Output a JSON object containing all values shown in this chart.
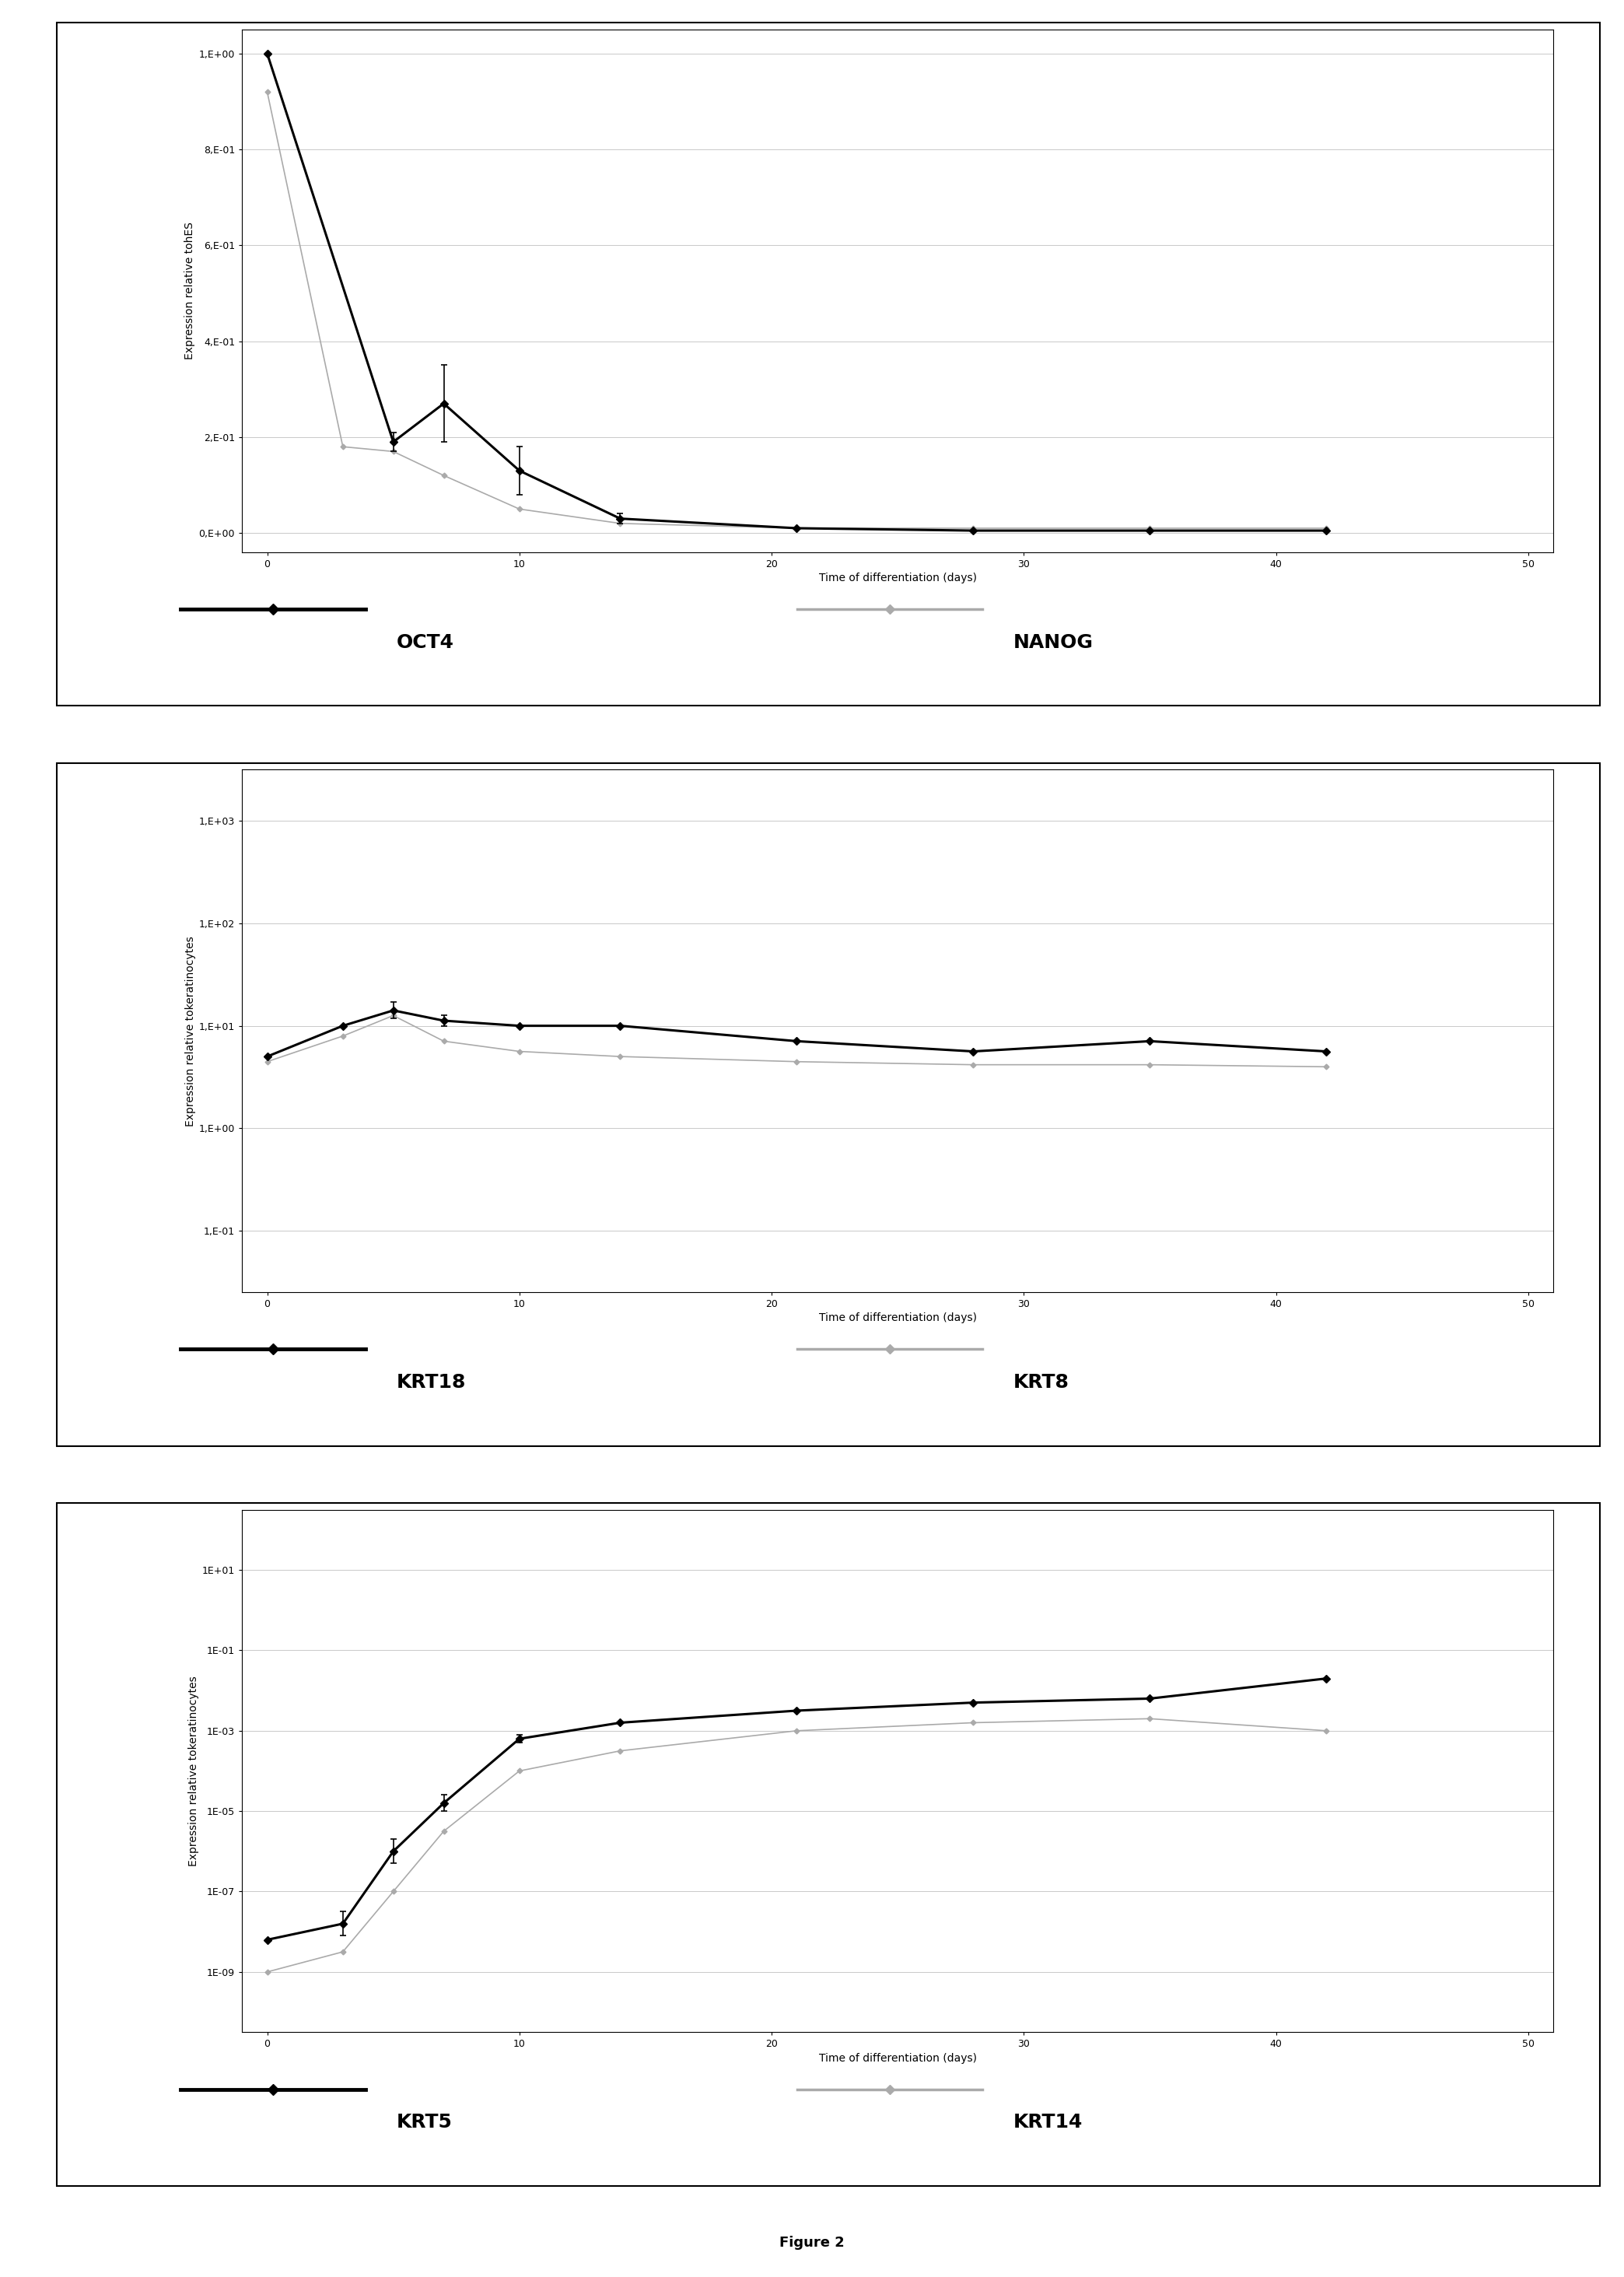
{
  "panel1": {
    "ylabel": "Expression relative tohES",
    "xlabel": "Time of differentiation (days)",
    "yticks": [
      0.0,
      0.2,
      0.4,
      0.6,
      0.8,
      1.0
    ],
    "ytick_labels": [
      "0,E+00",
      "2,E-01",
      "4,E-01",
      "6,E-01",
      "8,E-01",
      "1,E+00"
    ],
    "ylim": [
      -0.04,
      1.05
    ],
    "xlim": [
      -1,
      51
    ],
    "xticks": [
      0,
      10,
      20,
      30,
      40,
      50
    ],
    "legend1_label": "OCT4",
    "legend2_label": "NANOG",
    "black_x": [
      0,
      5,
      7,
      10,
      14,
      21,
      28,
      35,
      42
    ],
    "black_y": [
      1.0,
      0.19,
      0.27,
      0.13,
      0.03,
      0.01,
      0.005,
      0.005,
      0.005
    ],
    "black_yerr": [
      0.0,
      0.02,
      0.08,
      0.05,
      0.01,
      0.0,
      0.0,
      0.0,
      0.0
    ],
    "gray_x": [
      0,
      3,
      5,
      7,
      10,
      14,
      21,
      28,
      35,
      42
    ],
    "gray_y": [
      0.92,
      0.18,
      0.17,
      0.12,
      0.05,
      0.02,
      0.01,
      0.01,
      0.01,
      0.01
    ]
  },
  "panel2": {
    "ylabel": "Expression relative tokeratinocytes",
    "xlabel": "Time of differentiation (days)",
    "ytick_labels": [
      "1,E-01",
      "1,E+00",
      "1,E+01",
      "1,E+02",
      "1,E+03"
    ],
    "ytick_vals": [
      -1,
      0,
      1,
      2,
      3
    ],
    "ylim": [
      -1.6,
      3.5
    ],
    "xlim": [
      -1,
      51
    ],
    "xticks": [
      0,
      10,
      20,
      30,
      40,
      50
    ],
    "legend1_label": "KRT18",
    "legend2_label": "KRT8",
    "black_x": [
      0,
      3,
      5,
      7,
      10,
      14,
      21,
      28,
      35,
      42
    ],
    "black_y": [
      0.7,
      1.0,
      1.15,
      1.05,
      1.0,
      1.0,
      0.85,
      0.75,
      0.85,
      0.75
    ],
    "black_yerr": [
      0.0,
      0.0,
      0.08,
      0.05,
      0.0,
      0.0,
      0.0,
      0.0,
      0.0,
      0.0
    ],
    "gray_x": [
      0,
      3,
      5,
      7,
      10,
      14,
      21,
      28,
      35,
      42
    ],
    "gray_y": [
      0.65,
      0.9,
      1.1,
      0.85,
      0.75,
      0.7,
      0.65,
      0.62,
      0.62,
      0.6
    ]
  },
  "panel3": {
    "ylabel": "Expression relative tokeratinocytes",
    "xlabel": "Time of differentiation (days)",
    "ytick_labels": [
      "1E-09",
      "1E-07",
      "1E-05",
      "1E-03",
      "1E-01",
      "1E+01"
    ],
    "ytick_vals": [
      -9,
      -7,
      -5,
      -3,
      -1,
      1
    ],
    "ylim": [
      -10.5,
      2.5
    ],
    "xlim": [
      -1,
      51
    ],
    "xticks": [
      0,
      10,
      20,
      30,
      40,
      50
    ],
    "legend1_label": "KRT5",
    "legend2_label": "KRT14",
    "black_x": [
      0,
      3,
      5,
      7,
      10,
      14,
      21,
      28,
      35,
      42
    ],
    "black_y": [
      -8.2,
      -7.8,
      -6.0,
      -4.8,
      -3.2,
      -2.8,
      -2.5,
      -2.3,
      -2.2,
      -1.7
    ],
    "black_yerr": [
      0.0,
      0.3,
      0.3,
      0.2,
      0.1,
      0.0,
      0.0,
      0.0,
      0.0,
      0.0
    ],
    "gray_x": [
      0,
      3,
      5,
      7,
      10,
      14,
      21,
      28,
      35,
      42
    ],
    "gray_y": [
      -9.0,
      -8.5,
      -7.0,
      -5.5,
      -4.0,
      -3.5,
      -3.0,
      -2.8,
      -2.7,
      -3.0
    ]
  },
  "figure_label": "Figure 2",
  "background_color": "#ffffff",
  "panel_background": "#ffffff",
  "black_line_color": "#000000",
  "gray_line_color": "#aaaaaa",
  "font_size_axis_label": 10,
  "font_size_tick": 9,
  "font_size_legend_label": 18,
  "font_size_figure_label": 13
}
